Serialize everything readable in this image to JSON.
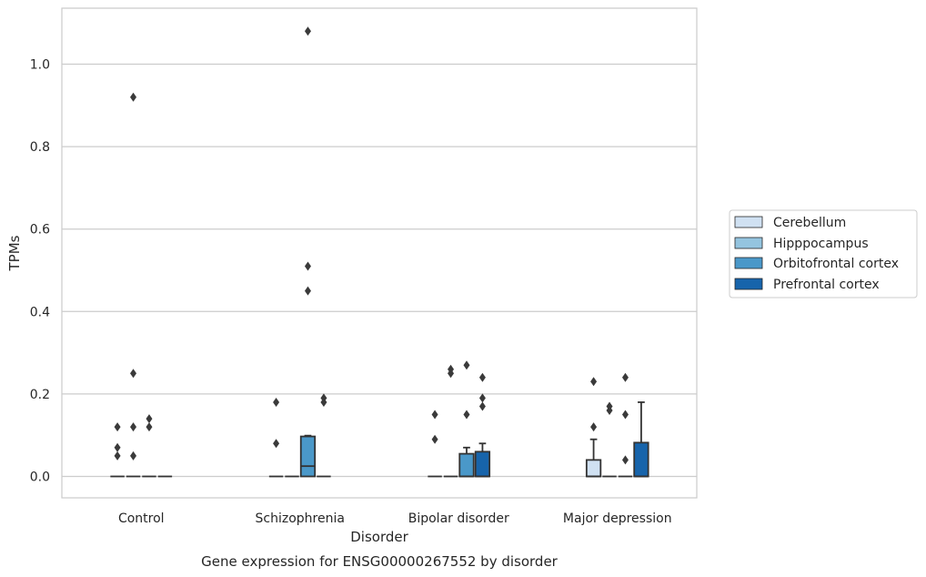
{
  "chart_data": {
    "type": "box",
    "title": "Gene expression for ENSG00000267552 by disorder",
    "xlabel": "Disorder",
    "ylabel": "TPMs",
    "categories": [
      "Control",
      "Schizophrenia",
      "Bipolar disorder",
      "Major depression"
    ],
    "ylim": [
      -0.05,
      1.14
    ],
    "yticks": [
      0.0,
      0.2,
      0.4,
      0.6,
      0.8,
      1.0
    ],
    "ytick_labels": [
      "0.0",
      "0.2",
      "0.4",
      "0.6",
      "0.8",
      "1.0"
    ],
    "grid": "horizontal",
    "legend_position": "right",
    "series": [
      {
        "name": "Cerebellum",
        "color": "#d0e1f2",
        "boxes": [
          {
            "q1": 0,
            "median": 0,
            "q3": 0,
            "whisker_low": 0,
            "whisker_high": 0,
            "outliers": [
              0.12,
              0.07,
              0.05
            ]
          },
          {
            "q1": 0,
            "median": 0,
            "q3": 0,
            "whisker_low": 0,
            "whisker_high": 0,
            "outliers": [
              0.18,
              0.08
            ]
          },
          {
            "q1": 0,
            "median": 0,
            "q3": 0,
            "whisker_low": 0,
            "whisker_high": 0,
            "outliers": [
              0.15,
              0.09
            ]
          },
          {
            "q1": 0,
            "median": 0,
            "q3": 0.04,
            "whisker_low": 0,
            "whisker_high": 0.09,
            "outliers": [
              0.23,
              0.12
            ]
          }
        ]
      },
      {
        "name": "Hipppocampus",
        "color": "#94c4df",
        "boxes": [
          {
            "q1": 0,
            "median": 0,
            "q3": 0,
            "whisker_low": 0,
            "whisker_high": 0,
            "outliers": [
              0.92,
              0.25,
              0.12,
              0.05
            ]
          },
          {
            "q1": 0,
            "median": 0,
            "q3": 0,
            "whisker_low": 0,
            "whisker_high": 0,
            "outliers": []
          },
          {
            "q1": 0,
            "median": 0,
            "q3": 0,
            "whisker_low": 0,
            "whisker_high": 0,
            "outliers": [
              0.26,
              0.25
            ]
          },
          {
            "q1": 0,
            "median": 0,
            "q3": 0,
            "whisker_low": 0,
            "whisker_high": 0,
            "outliers": [
              0.17,
              0.16
            ]
          }
        ]
      },
      {
        "name": "Orbitofrontal cortex",
        "color": "#4a98c9",
        "boxes": [
          {
            "q1": 0,
            "median": 0,
            "q3": 0,
            "whisker_low": 0,
            "whisker_high": 0,
            "outliers": [
              0.14,
              0.12
            ]
          },
          {
            "q1": 0,
            "median": 0.025,
            "q3": 0.097,
            "whisker_low": 0,
            "whisker_high": 0.099,
            "outliers": [
              1.08,
              0.51,
              0.45
            ]
          },
          {
            "q1": 0,
            "median": 0,
            "q3": 0.055,
            "whisker_low": 0,
            "whisker_high": 0.07,
            "outliers": [
              0.27,
              0.15
            ]
          },
          {
            "q1": 0,
            "median": 0,
            "q3": 0,
            "whisker_low": 0,
            "whisker_high": 0,
            "outliers": [
              0.24,
              0.15,
              0.04
            ]
          }
        ]
      },
      {
        "name": "Prefrontal cortex",
        "color": "#1764ab",
        "boxes": [
          {
            "q1": 0,
            "median": 0,
            "q3": 0,
            "whisker_low": 0,
            "whisker_high": 0,
            "outliers": []
          },
          {
            "q1": 0,
            "median": 0,
            "q3": 0,
            "whisker_low": 0,
            "whisker_high": 0,
            "outliers": [
              0.19,
              0.18
            ]
          },
          {
            "q1": 0,
            "median": 0,
            "q3": 0.06,
            "whisker_low": 0,
            "whisker_high": 0.08,
            "outliers": [
              0.24,
              0.19,
              0.17
            ]
          },
          {
            "q1": 0,
            "median": 0,
            "q3": 0.082,
            "whisker_low": 0,
            "whisker_high": 0.18,
            "outliers": []
          }
        ]
      }
    ]
  }
}
